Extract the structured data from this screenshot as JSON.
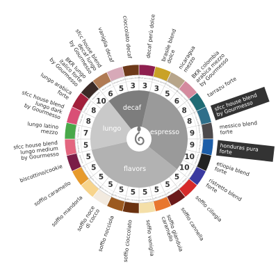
{
  "center": {
    "labels": {
      "decaf": "decaf",
      "espresso": "espresso",
      "flavors": "flavors",
      "lungo": "lungo"
    },
    "colors": {
      "decaf": "#7d7d7d",
      "espresso": "#9a9a9a",
      "flavors": "#b2b2b2",
      "lungo": "#c9c9c9",
      "hub": "#ffffff",
      "swirl": "#7a7a7a"
    }
  },
  "capsules": [
    {
      "name": [
        "decaf perù dolce"
      ],
      "number": "3",
      "color": "#8e1f4f",
      "micro": "decaf perù dolce",
      "group": "decaf"
    },
    {
      "name": [
        "brasile blend",
        "dolce"
      ],
      "number": "3",
      "color": "#c9a227",
      "micro": "brasile blend",
      "group": "espresso"
    },
    {
      "name": [
        "nicaragua",
        "mezzo"
      ],
      "number": "5",
      "color": "#b7a58a",
      "micro": "nicaragua mezzo",
      "group": "espresso"
    },
    {
      "name": [
        "BKR colombia",
        "arabica mezzo",
        "by Gourmesso"
      ],
      "number": "6",
      "color": "#d48a9e",
      "micro": "colombia mezzo",
      "group": "espresso"
    },
    {
      "name": [
        "tarrazu forte"
      ],
      "number": "8",
      "color": "#1f6b74",
      "micro": "tarrazu forte",
      "group": "espresso"
    },
    {
      "name": [
        "sfcc house blend",
        "by Gourmesso"
      ],
      "number": "8",
      "color": "#2f6f8a",
      "micro": "sfcc house blend",
      "group": "espresso",
      "dark": true
    },
    {
      "name": [
        "messico blend",
        "forte"
      ],
      "number": "9",
      "color": "#4d4a4c",
      "micro": "messico forte",
      "group": "espresso"
    },
    {
      "name": [
        "honduras pura",
        "forte"
      ],
      "number": "9",
      "color": "#1d5ea8",
      "micro": "honduras forte",
      "group": "espresso",
      "dark": true
    },
    {
      "name": [
        "etiopia blend",
        "forte"
      ],
      "number": "10",
      "color": "#222222",
      "micro": "etiopia forte",
      "group": "espresso"
    },
    {
      "name": [
        "ristretto blend",
        "forte"
      ],
      "number": "10",
      "color": "#3a3aa0",
      "micro": "ristretto forte",
      "group": "espresso"
    },
    {
      "name": [
        "soffio ciliegia"
      ],
      "number": "5",
      "color": "#d62a2a",
      "micro": "soffio ciliegia",
      "group": "flavors"
    },
    {
      "name": [
        "soffio cannella"
      ],
      "number": "5",
      "color": "#6b1a1a",
      "micro": "soffio cannella",
      "group": "flavors"
    },
    {
      "name": [
        "soffio gianduia",
        "caramello"
      ],
      "number": "5",
      "color": "#e8772e",
      "micro": "soffio gianduia",
      "group": "flavors"
    },
    {
      "name": [
        "soffio vaniglia"
      ],
      "number": "5",
      "color": "#f4dfa8",
      "micro": "soffio vaniglia",
      "group": "flavors"
    },
    {
      "name": [
        "soffio cioccolato"
      ],
      "number": "5",
      "color": "#6b3210",
      "micro": "soffio cioccolato",
      "group": "flavors"
    },
    {
      "name": [
        "soffio nocciola"
      ],
      "number": "5",
      "color": "#9c5a1f",
      "micro": "soffio nocciola",
      "group": "flavors"
    },
    {
      "name": [
        "soffio noce",
        "di cocco"
      ],
      "number": "5",
      "color": "#f2eadf",
      "micro": "soffio noce cocco",
      "group": "flavors"
    },
    {
      "name": [
        "soffio mandorla"
      ],
      "number": "5",
      "color": "#f7d48c",
      "micro": "soffio mandorla",
      "group": "flavors"
    },
    {
      "name": [
        "soffio caramello"
      ],
      "number": "5",
      "color": "#e79a2c",
      "micro": "soffio caramello",
      "group": "flavors"
    },
    {
      "name": [
        "biscottino/cookie"
      ],
      "number": "5",
      "color": "#7a1d47",
      "micro": "biscottino",
      "group": "flavors"
    },
    {
      "name": [
        "sfcc house blend",
        "lungo medium",
        "by Gourmesso"
      ],
      "number": "5",
      "color": "#e3667f",
      "micro": "lungo medium",
      "group": "lungo"
    },
    {
      "name": [
        "lungo latino",
        "mezzo"
      ],
      "number": "7",
      "color": "#49a84a",
      "micro": "lungo latino",
      "group": "lungo"
    },
    {
      "name": [
        "sfcc house blend",
        "lungo dark",
        "by Gourmesso"
      ],
      "number": "8",
      "color": "#d94f76",
      "micro": "lungo dark",
      "group": "lungo"
    },
    {
      "name": [
        "lungo arabica",
        "forte"
      ],
      "number": "8",
      "color": "#a11f3a",
      "micro": "lungo arabica",
      "group": "lungo"
    },
    {
      "name": [
        "BKR lungo",
        "italico forte",
        "by Gourmesso"
      ],
      "number": "10",
      "color": "#3b2a26",
      "micro": "italico forte",
      "group": "lungo"
    },
    {
      "name": [
        "sfcc house blend",
        "decaf lungo",
        "by Gourmesso"
      ],
      "number": "6",
      "color": "#b07a53",
      "micro": "decaf lungo",
      "group": "decaf"
    },
    {
      "name": [
        "vaniglia decaf"
      ],
      "number": "5",
      "color": "#d7a9b8",
      "micro": "vaniglia decaf",
      "group": "decaf"
    },
    {
      "name": [
        "cioccolato decaf"
      ],
      "number": "3",
      "color": "#6e3a1a",
      "micro": "cioccolato decaf",
      "group": "decaf"
    }
  ]
}
